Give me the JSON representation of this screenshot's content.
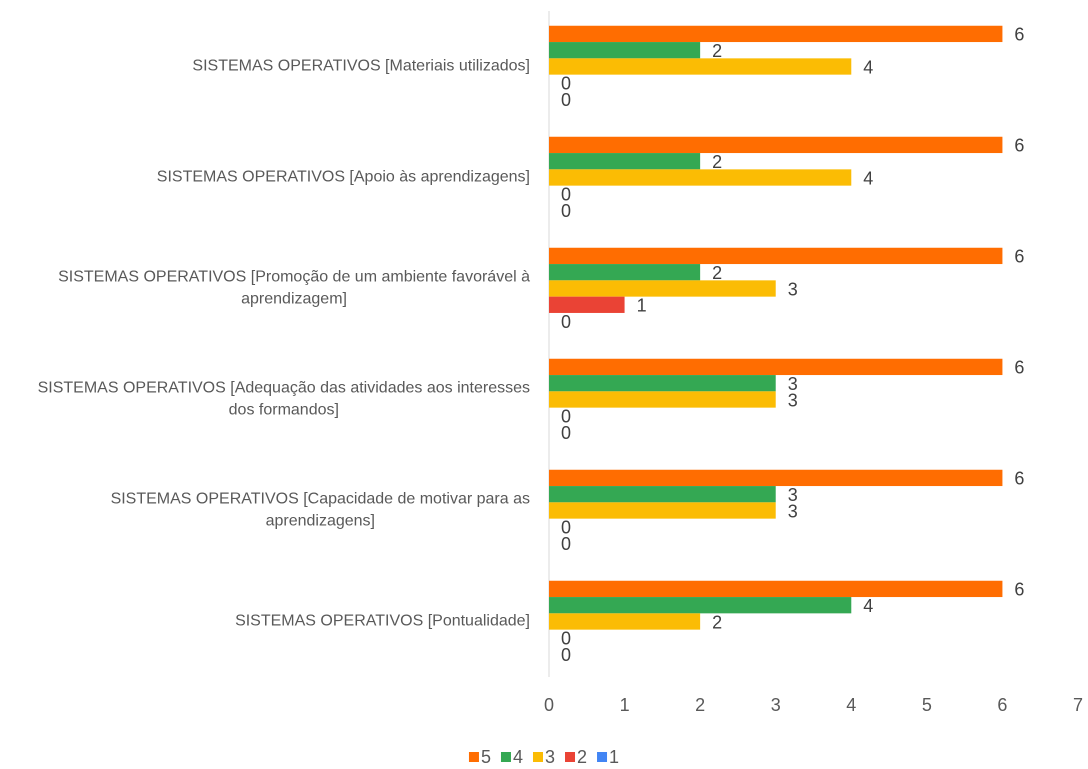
{
  "chart_data": {
    "type": "bar",
    "orientation": "horizontal",
    "categories": [
      "SISTEMAS OPERATIVOS [Materiais utilizados]",
      "SISTEMAS OPERATIVOS [Apoio às aprendizagens]",
      "SISTEMAS OPERATIVOS [Promoção de um ambiente favorável à aprendizagem]",
      "SISTEMAS OPERATIVOS [Adequação das atividades aos interesses dos formandos]",
      "SISTEMAS OPERATIVOS [Capacidade de motivar para as aprendizagens]",
      "SISTEMAS OPERATIVOS [Pontualidade]"
    ],
    "series": [
      {
        "name": "5",
        "color": "#ff6d01",
        "values": [
          6,
          6,
          6,
          6,
          6,
          6
        ]
      },
      {
        "name": "4",
        "color": "#34a853",
        "values": [
          2,
          2,
          2,
          3,
          3,
          4
        ]
      },
      {
        "name": "3",
        "color": "#fbbc04",
        "values": [
          4,
          4,
          3,
          3,
          3,
          2
        ]
      },
      {
        "name": "2",
        "color": "#ea4335",
        "values": [
          0,
          0,
          1,
          0,
          0,
          0
        ]
      },
      {
        "name": "1",
        "color": "#4285f4",
        "values": [
          0,
          0,
          0,
          0,
          0,
          0
        ]
      }
    ],
    "xlim": [
      0,
      7
    ],
    "xticks": [
      0,
      1,
      2,
      3,
      4,
      5,
      6,
      7
    ],
    "grid": false,
    "legend": "bottom"
  }
}
